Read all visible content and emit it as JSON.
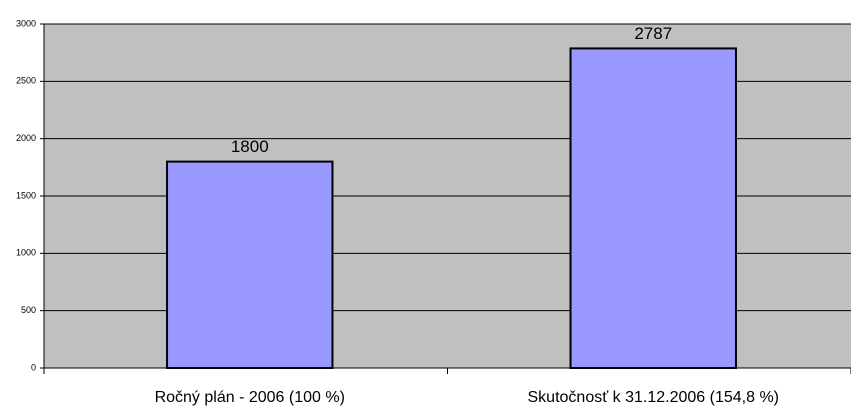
{
  "chart_data": {
    "type": "bar",
    "categories": [
      "Ročný plán - 2006 (100 %)",
      "Skutočnosť k 31.12.2006 (154,8 %)"
    ],
    "values": [
      1800,
      2787
    ],
    "color": "#9999ff",
    "ylim": [
      0,
      3000
    ],
    "yticks": [
      0,
      500,
      1000,
      1500,
      2000,
      2500,
      3000
    ],
    "grid": true
  }
}
